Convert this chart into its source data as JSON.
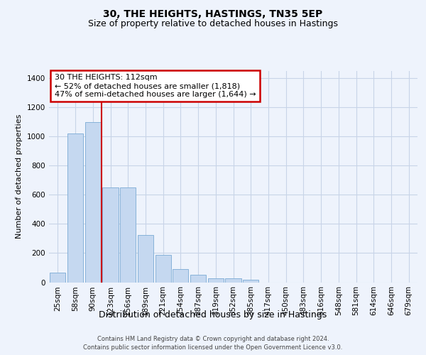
{
  "title": "30, THE HEIGHTS, HASTINGS, TN35 5EP",
  "subtitle": "Size of property relative to detached houses in Hastings",
  "xlabel": "Distribution of detached houses by size in Hastings",
  "ylabel": "Number of detached properties",
  "bar_color": "#c5d8f0",
  "bar_edge_color": "#7aaad4",
  "background_color": "#eef3fc",
  "grid_color": "#c8d4e8",
  "categories": [
    "25sqm",
    "58sqm",
    "90sqm",
    "123sqm",
    "156sqm",
    "189sqm",
    "221sqm",
    "254sqm",
    "287sqm",
    "319sqm",
    "352sqm",
    "385sqm",
    "417sqm",
    "450sqm",
    "483sqm",
    "516sqm",
    "548sqm",
    "581sqm",
    "614sqm",
    "646sqm",
    "679sqm"
  ],
  "values": [
    65,
    1020,
    1100,
    650,
    650,
    325,
    190,
    90,
    50,
    28,
    25,
    15,
    0,
    0,
    0,
    0,
    0,
    0,
    0,
    0,
    0
  ],
  "ylim": [
    0,
    1450
  ],
  "yticks": [
    0,
    200,
    400,
    600,
    800,
    1000,
    1200,
    1400
  ],
  "red_line_x": 2.5,
  "red_line_color": "#cc0000",
  "annotation_line1": "30 THE HEIGHTS: 112sqm",
  "annotation_line2": "← 52% of detached houses are smaller (1,818)",
  "annotation_line3": "47% of semi-detached houses are larger (1,644) →",
  "annotation_box_edgecolor": "#cc0000",
  "footer_line1": "Contains HM Land Registry data © Crown copyright and database right 2024.",
  "footer_line2": "Contains public sector information licensed under the Open Government Licence v3.0.",
  "title_fontsize": 10,
  "subtitle_fontsize": 9,
  "ylabel_fontsize": 8,
  "xlabel_fontsize": 9,
  "tick_fontsize": 7.5,
  "annotation_fontsize": 8,
  "footer_fontsize": 6
}
